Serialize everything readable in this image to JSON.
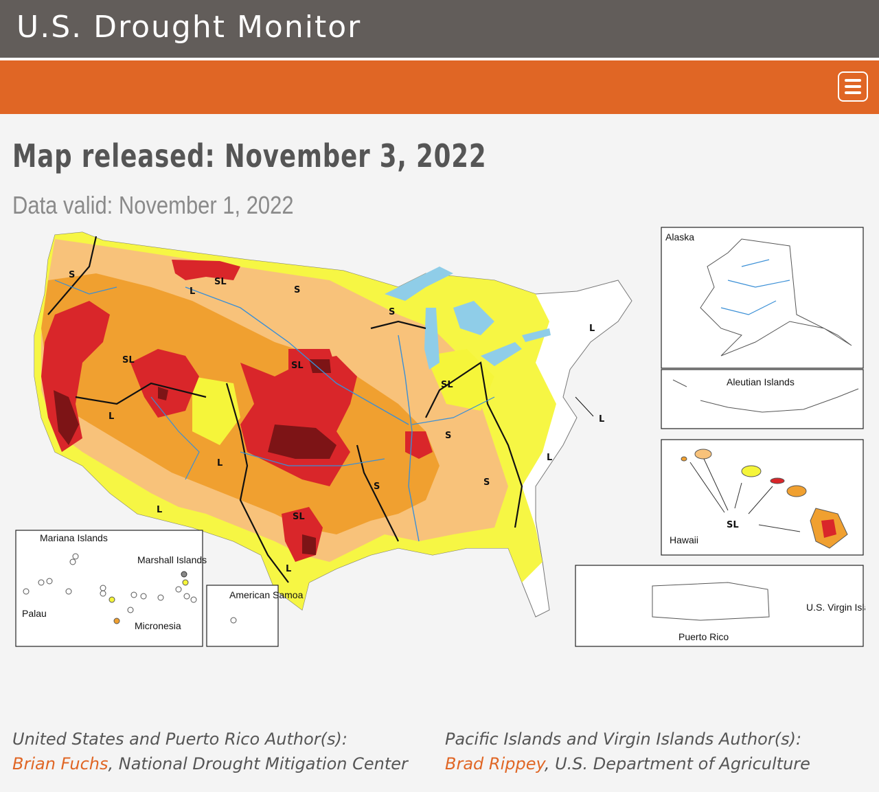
{
  "header": {
    "title": "U.S. Drought Monitor"
  },
  "page": {
    "released": "Map released: November 3, 2022",
    "valid": "Data valid: November 1, 2022"
  },
  "map": {
    "colors": {
      "D0": "#f5f53a",
      "D1": "#f8c27a",
      "D2": "#f0a030",
      "D3": "#d9262a",
      "D4": "#7d1416",
      "water": "#8fcde8"
    },
    "insets": {
      "alaska": "Alaska",
      "aleutian": "Aleutian Islands",
      "hawaii": "Hawaii",
      "puerto_rico": "Puerto Rico",
      "usvi": "U.S. Virgin Islands",
      "mariana": "Mariana Islands",
      "marshall": "Marshall Islands",
      "palau": "Palau",
      "micronesia": "Micronesia",
      "samoa": "American Samoa"
    },
    "impact_labels": {
      "s": "S",
      "l": "L",
      "sl": "SL"
    }
  },
  "authors": {
    "us": {
      "role": "United States and Puerto Rico Author(s):",
      "name": "Brian Fuchs",
      "org": ", National Drought Mitigation Center"
    },
    "pacific": {
      "role": "Pacific Islands and Virgin Islands Author(s):",
      "name": "Brad Rippey",
      "org": ", U.S. Department of Agriculture"
    }
  }
}
